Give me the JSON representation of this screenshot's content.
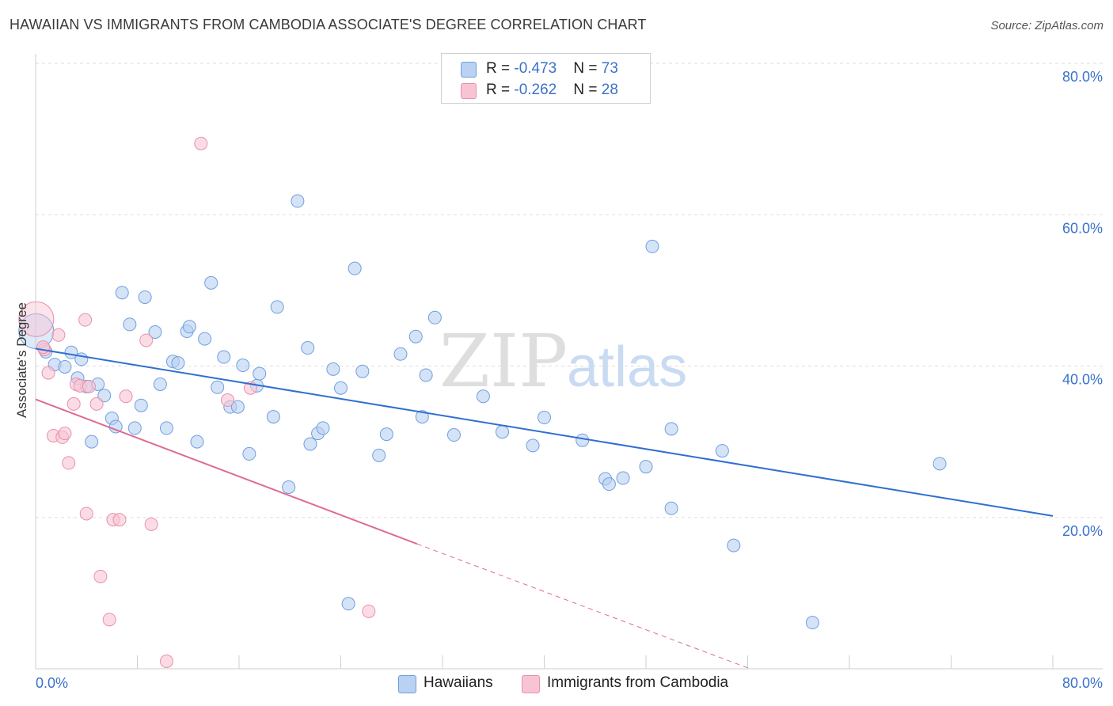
{
  "header": {
    "title": "HAWAIIAN VS IMMIGRANTS FROM CAMBODIA ASSOCIATE'S DEGREE CORRELATION CHART",
    "source": "Source: ZipAtlas.com"
  },
  "legend": {
    "rows": [
      {
        "r_label": "R = ",
        "r_value": "-0.473",
        "n_label": "N = ",
        "n_value": "73"
      },
      {
        "r_label": "R = ",
        "r_value": "-0.262",
        "n_label": "N = ",
        "n_value": "28"
      }
    ]
  },
  "watermark": {
    "zip": "ZIP",
    "atlas": "atlas"
  },
  "colors": {
    "hawaiian_fill": "#b9d1f2",
    "hawaiian_stroke": "#6f9fdf",
    "hawaiian_line": "#2f6fd0",
    "cambodia_fill": "#f8c4d3",
    "cambodia_stroke": "#e990ac",
    "cambodia_line": "#df6a93",
    "tick_label": "#3a72c9",
    "grid": "#dddddd"
  },
  "chart_data": {
    "type": "scatter",
    "title": "HAWAIIAN VS IMMIGRANTS FROM CAMBODIA ASSOCIATE'S DEGREE CORRELATION CHART",
    "xlabel": "",
    "ylabel": "Associate's Degree",
    "xlim": [
      0,
      80
    ],
    "ylim": [
      0,
      80
    ],
    "x_tick_labels": [
      "0.0%",
      "80.0%"
    ],
    "y_tick_labels": [
      {
        "value": 80,
        "label": "80.0%"
      },
      {
        "value": 60,
        "label": "60.0%"
      },
      {
        "value": 40,
        "label": "40.0%"
      },
      {
        "value": 20,
        "label": "20.0%"
      }
    ],
    "grid": true,
    "legend_position": "bottom",
    "series": [
      {
        "name": "Hawaiians",
        "color": "#6f9fdf",
        "r": -0.473,
        "n": 73,
        "trend": {
          "x": [
            0,
            80
          ],
          "y": [
            42.3,
            20.2
          ]
        },
        "points": [
          [
            0.05,
            44.6
          ],
          [
            0.8,
            41.9
          ],
          [
            1.5,
            40.2
          ],
          [
            2.3,
            39.9
          ],
          [
            2.8,
            41.8
          ],
          [
            3.3,
            38.4
          ],
          [
            3.6,
            40.9
          ],
          [
            4.0,
            37.3
          ],
          [
            4.4,
            30.0
          ],
          [
            4.9,
            37.6
          ],
          [
            5.4,
            36.1
          ],
          [
            6.0,
            33.1
          ],
          [
            6.3,
            32.0
          ],
          [
            6.8,
            49.7
          ],
          [
            7.4,
            45.5
          ],
          [
            7.8,
            31.8
          ],
          [
            8.3,
            34.8
          ],
          [
            8.6,
            49.1
          ],
          [
            9.4,
            44.5
          ],
          [
            9.8,
            37.6
          ],
          [
            10.3,
            31.8
          ],
          [
            10.8,
            40.6
          ],
          [
            11.2,
            40.4
          ],
          [
            11.9,
            44.6
          ],
          [
            12.1,
            45.2
          ],
          [
            12.7,
            30.0
          ],
          [
            13.3,
            43.6
          ],
          [
            13.8,
            51.0
          ],
          [
            14.3,
            37.2
          ],
          [
            14.8,
            41.2
          ],
          [
            15.3,
            34.6
          ],
          [
            15.9,
            34.6
          ],
          [
            16.3,
            40.1
          ],
          [
            16.8,
            28.4
          ],
          [
            17.4,
            37.4
          ],
          [
            17.6,
            39.0
          ],
          [
            18.7,
            33.3
          ],
          [
            19.0,
            47.8
          ],
          [
            19.9,
            24.0
          ],
          [
            20.6,
            61.8
          ],
          [
            21.4,
            42.4
          ],
          [
            21.6,
            29.7
          ],
          [
            22.2,
            31.1
          ],
          [
            22.6,
            31.8
          ],
          [
            23.4,
            39.6
          ],
          [
            24.0,
            37.1
          ],
          [
            24.6,
            8.6
          ],
          [
            25.1,
            52.9
          ],
          [
            25.7,
            39.3
          ],
          [
            27.0,
            28.2
          ],
          [
            27.6,
            31.0
          ],
          [
            28.7,
            41.6
          ],
          [
            29.9,
            43.9
          ],
          [
            30.4,
            33.3
          ],
          [
            30.7,
            38.8
          ],
          [
            31.4,
            46.4
          ],
          [
            32.9,
            30.9
          ],
          [
            35.2,
            36.0
          ],
          [
            36.7,
            31.3
          ],
          [
            39.1,
            29.5
          ],
          [
            40.0,
            33.2
          ],
          [
            43.0,
            30.2
          ],
          [
            44.8,
            25.1
          ],
          [
            45.1,
            24.4
          ],
          [
            46.2,
            25.2
          ],
          [
            48.0,
            26.7
          ],
          [
            48.5,
            55.8
          ],
          [
            50.0,
            21.2
          ],
          [
            50.0,
            31.7
          ],
          [
            54.0,
            28.8
          ],
          [
            54.9,
            16.3
          ],
          [
            61.1,
            6.1
          ],
          [
            71.1,
            27.1
          ]
        ]
      },
      {
        "name": "Immigrants from Cambodia",
        "color": "#e990ac",
        "r": -0.262,
        "n": 28,
        "trend": {
          "x": [
            0,
            30
          ],
          "y": [
            35.6,
            16.5
          ]
        },
        "trend_dashed": {
          "x": [
            30,
            56.2
          ],
          "y": [
            16.5,
            0
          ]
        },
        "points": [
          [
            0.05,
            46.2
          ],
          [
            0.7,
            42.2
          ],
          [
            1.0,
            39.1
          ],
          [
            1.4,
            30.8
          ],
          [
            1.8,
            44.1
          ],
          [
            2.1,
            30.6
          ],
          [
            2.3,
            31.1
          ],
          [
            2.6,
            27.2
          ],
          [
            3.0,
            35.0
          ],
          [
            3.2,
            37.6
          ],
          [
            3.5,
            37.4
          ],
          [
            3.9,
            46.1
          ],
          [
            4.0,
            20.5
          ],
          [
            4.8,
            35.0
          ],
          [
            5.1,
            12.2
          ],
          [
            5.8,
            6.5
          ],
          [
            6.1,
            19.7
          ],
          [
            6.6,
            19.7
          ],
          [
            7.1,
            36.0
          ],
          [
            8.7,
            43.4
          ],
          [
            9.1,
            19.1
          ],
          [
            10.3,
            1.0
          ],
          [
            13.0,
            69.4
          ],
          [
            15.1,
            35.5
          ],
          [
            16.9,
            37.1
          ],
          [
            26.2,
            7.6
          ],
          [
            0.6,
            42.5
          ],
          [
            4.2,
            37.3
          ]
        ]
      }
    ]
  }
}
